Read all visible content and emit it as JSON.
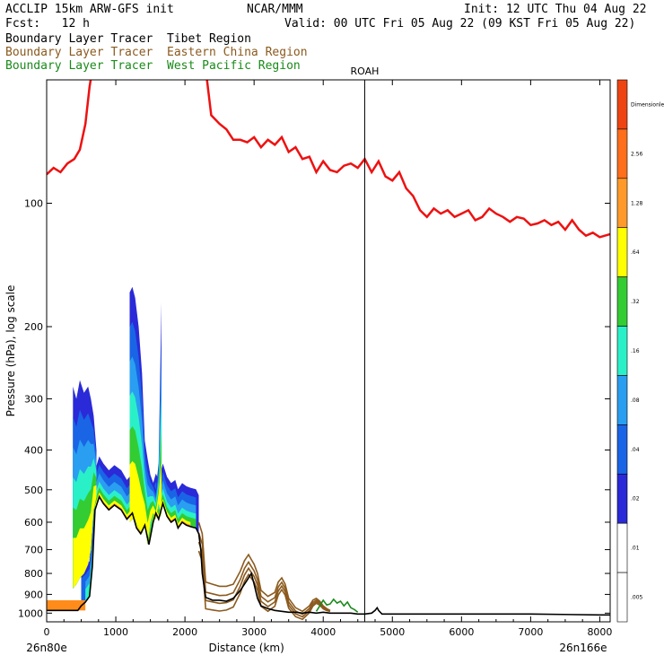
{
  "header": {
    "model": "ACCLIP 15km ARW-GFS init",
    "org": "NCAR/MMM",
    "init": "Init: 12 UTC Thu 04 Aug 22",
    "fcst": "Fcst:   12 h",
    "valid": "Valid: 00 UTC Fri 05 Aug 22 (09 KST Fri 05 Aug 22)",
    "legend": [
      {
        "text": "Boundary Layer Tracer  Tibet Region",
        "color": "#000000"
      },
      {
        "text": "Boundary Layer Tracer  Eastern China Region",
        "color": "#8b5a1e"
      },
      {
        "text": "Boundary Layer Tracer  West Pacific Region",
        "color": "#1a8a1a"
      }
    ]
  },
  "chart_data": {
    "type": "area",
    "xlabel": "Distance (km)",
    "ylabel": "Pressure (hPa), log scale",
    "xlim": [
      0,
      8150
    ],
    "ylim": [
      1050,
      50
    ],
    "x_ticks": [
      0,
      1000,
      2000,
      3000,
      4000,
      5000,
      6000,
      7000,
      8000
    ],
    "y_ticks": [
      100,
      200,
      300,
      400,
      500,
      600,
      700,
      800,
      900,
      1000
    ],
    "start_label": "26n80e",
    "end_label": "26n166e",
    "marker": {
      "label": "ROAH",
      "x": 4600
    },
    "tropopause": {
      "color": "#ee1111",
      "x": [
        0,
        100,
        200,
        300,
        400,
        480,
        560,
        620,
        680,
        730,
        760,
        2240,
        2300,
        2380,
        2500,
        2600,
        2700,
        2800,
        2900,
        3000,
        3100,
        3200,
        3300,
        3400,
        3500,
        3600,
        3700,
        3800,
        3900,
        4000,
        4100,
        4200,
        4300,
        4400,
        4500,
        4600,
        4700,
        4800,
        4900,
        5000,
        5100,
        5200,
        5300,
        5400,
        5500,
        5600,
        5700,
        5800,
        5900,
        6000,
        6100,
        6200,
        6300,
        6400,
        6500,
        6600,
        6700,
        6800,
        6900,
        7000,
        7100,
        7200,
        7300,
        7400,
        7500,
        7600,
        7700,
        7800,
        7900,
        8000,
        8150
      ],
      "y": [
        85,
        82,
        84,
        80,
        78,
        74,
        64,
        52,
        45,
        41,
        35,
        35,
        47,
        61,
        64,
        66,
        70,
        70,
        71,
        69,
        73,
        70,
        72,
        69,
        75,
        73,
        78,
        77,
        84,
        79,
        83,
        84,
        81,
        80,
        82,
        78,
        84,
        79,
        86,
        88,
        84,
        92,
        96,
        104,
        108,
        103,
        106,
        104,
        108,
        106,
        104,
        110,
        108,
        103,
        106,
        108,
        111,
        108,
        109,
        113,
        112,
        110,
        113,
        111,
        116,
        110,
        116,
        120,
        118,
        121,
        119
      ]
    },
    "tibet_tracer_bottom": {
      "color": "#000000",
      "x": [
        0,
        450,
        500,
        560,
        620,
        660,
        700,
        760,
        820,
        900,
        980,
        1080,
        1160,
        1240,
        1300,
        1360,
        1420,
        1480,
        1540,
        1580,
        1620,
        1680,
        1740,
        1800,
        1860,
        1900,
        1960,
        2020,
        2080,
        2160,
        2200,
        2230,
        2250,
        2300,
        2400,
        2500,
        2600,
        2700,
        2800,
        2900,
        2960,
        3000,
        3050,
        3100,
        3200,
        3300,
        3400,
        3500,
        3600,
        3700,
        3800,
        3900,
        4000,
        4100,
        4200,
        4300,
        4400,
        4500,
        4600,
        4700,
        4750,
        4780,
        4800,
        4850,
        5000,
        6000,
        7000,
        8000,
        8150
      ],
      "y": [
        985,
        985,
        960,
        940,
        910,
        770,
        560,
        520,
        540,
        560,
        545,
        560,
        590,
        570,
        620,
        640,
        610,
        680,
        600,
        570,
        590,
        540,
        580,
        600,
        590,
        620,
        600,
        610,
        615,
        620,
        640,
        700,
        800,
        915,
        930,
        930,
        935,
        920,
        880,
        830,
        800,
        850,
        920,
        960,
        975,
        985,
        990,
        995,
        995,
        1000,
        995,
        1000,
        995,
        1000,
        1000,
        1000,
        1000,
        1005,
        1005,
        1000,
        985,
        970,
        985,
        1005,
        1005,
        1005,
        1005,
        1010,
        1010
      ]
    },
    "eastern_china_tracer_top": {
      "color": "#8b5a1e",
      "x": [
        2200,
        2250,
        2300,
        2400,
        2500,
        2600,
        2700,
        2800,
        2860,
        2920,
        2960,
        3000,
        3050,
        3100,
        3200,
        3300,
        3350,
        3400,
        3450,
        3500,
        3600,
        3700,
        3800,
        3850,
        3900,
        3950,
        4000,
        4050,
        4100
      ],
      "y": [
        600,
        640,
        840,
        850,
        860,
        860,
        850,
        790,
        745,
        720,
        740,
        760,
        800,
        880,
        910,
        890,
        840,
        820,
        850,
        920,
        970,
        990,
        960,
        930,
        920,
        935,
        960,
        975,
        985
      ]
    },
    "west_pacific_tracer_top": {
      "color": "#1a8a1a",
      "x": [
        3900,
        3950,
        4000,
        4050,
        4100,
        4150,
        4200,
        4250,
        4300,
        4350,
        4400,
        4450,
        4500
      ],
      "y": [
        990,
        960,
        930,
        955,
        950,
        925,
        945,
        935,
        960,
        940,
        970,
        980,
        995
      ]
    },
    "colorbar": {
      "labels": [
        "Dimensionless",
        "2.56",
        "1.28",
        ".64",
        ".32",
        ".16",
        ".08",
        ".04",
        ".02",
        ".01",
        ".005"
      ],
      "colors": [
        "#ee4411",
        "#ff6e1a",
        "#ff9a2a",
        "#ffff00",
        "#33cc33",
        "#2af0c8",
        "#2a9ef0",
        "#1a64e6",
        "#2a2ad8",
        "#ffffff",
        "#ffffff"
      ]
    }
  }
}
